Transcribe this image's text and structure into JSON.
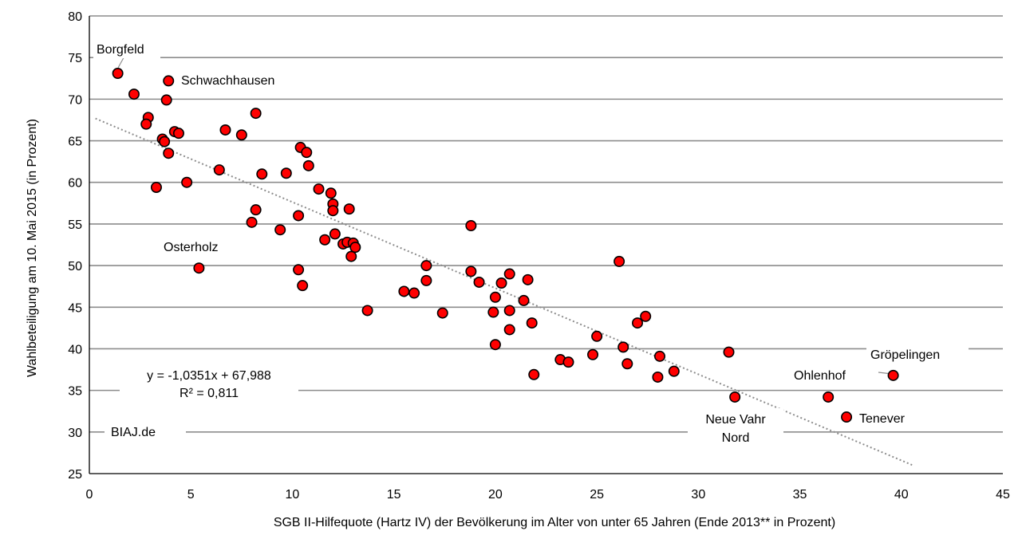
{
  "chart_data": {
    "type": "scatter",
    "title": "",
    "xlabel": "SGB II-Hilfequote (Hartz IV) der Bevölkerung im Alter von unter 65 Jahren (Ende 2013** in Prozent)",
    "ylabel": "Wahlbeteiligung am 10. Mai 2015 (in Prozent)",
    "xlim": [
      0,
      45
    ],
    "ylim": [
      25,
      80
    ],
    "x_ticks": [
      "0",
      "5",
      "10",
      "15",
      "20",
      "25",
      "30",
      "35",
      "40",
      "45"
    ],
    "y_ticks": [
      "25",
      "30",
      "35",
      "40",
      "45",
      "50",
      "55",
      "60",
      "65",
      "70",
      "75",
      "80"
    ],
    "grid": "horizontal",
    "marker_color": "#ff0000",
    "marker_edge": "#000000",
    "trendline": {
      "slope": -1.0351,
      "intercept": 67.988,
      "x_range": [
        0.3,
        40.6
      ],
      "style": "dotted",
      "color": "#8c8c8c"
    },
    "equation_lines": [
      "y = -1,0351x + 67,988",
      "R² = 0,811"
    ],
    "watermark": "BIAJ.de",
    "points": [
      {
        "x": 1.4,
        "y": 73.1,
        "label": "Borgfeld"
      },
      {
        "x": 2.2,
        "y": 70.6
      },
      {
        "x": 3.9,
        "y": 72.2,
        "label": "Schwachhausen"
      },
      {
        "x": 3.8,
        "y": 69.9
      },
      {
        "x": 2.9,
        "y": 67.8
      },
      {
        "x": 2.8,
        "y": 67.0
      },
      {
        "x": 4.2,
        "y": 66.1
      },
      {
        "x": 4.4,
        "y": 65.9
      },
      {
        "x": 3.6,
        "y": 65.2
      },
      {
        "x": 3.7,
        "y": 64.9
      },
      {
        "x": 3.9,
        "y": 63.5
      },
      {
        "x": 3.3,
        "y": 59.4
      },
      {
        "x": 4.8,
        "y": 60.0
      },
      {
        "x": 6.7,
        "y": 66.3
      },
      {
        "x": 7.5,
        "y": 65.7
      },
      {
        "x": 8.2,
        "y": 68.3
      },
      {
        "x": 6.4,
        "y": 61.5
      },
      {
        "x": 8.5,
        "y": 61.0
      },
      {
        "x": 9.7,
        "y": 61.1
      },
      {
        "x": 8.2,
        "y": 56.7
      },
      {
        "x": 8.0,
        "y": 55.2
      },
      {
        "x": 9.4,
        "y": 54.3
      },
      {
        "x": 5.4,
        "y": 49.7,
        "label": "Osterholz"
      },
      {
        "x": 10.4,
        "y": 64.2
      },
      {
        "x": 10.7,
        "y": 63.6
      },
      {
        "x": 10.8,
        "y": 62.0
      },
      {
        "x": 11.3,
        "y": 59.2
      },
      {
        "x": 11.9,
        "y": 58.7
      },
      {
        "x": 12.0,
        "y": 57.4
      },
      {
        "x": 12.0,
        "y": 56.6
      },
      {
        "x": 12.8,
        "y": 56.8
      },
      {
        "x": 10.3,
        "y": 56.0
      },
      {
        "x": 12.1,
        "y": 53.8
      },
      {
        "x": 11.6,
        "y": 53.1
      },
      {
        "x": 12.5,
        "y": 52.6
      },
      {
        "x": 12.7,
        "y": 52.8
      },
      {
        "x": 13.0,
        "y": 52.7
      },
      {
        "x": 13.1,
        "y": 52.2
      },
      {
        "x": 12.9,
        "y": 51.1
      },
      {
        "x": 10.3,
        "y": 49.5
      },
      {
        "x": 10.5,
        "y": 47.6
      },
      {
        "x": 13.7,
        "y": 44.6
      },
      {
        "x": 15.5,
        "y": 46.9
      },
      {
        "x": 16.0,
        "y": 46.7
      },
      {
        "x": 16.6,
        "y": 50.0
      },
      {
        "x": 16.6,
        "y": 48.2
      },
      {
        "x": 17.4,
        "y": 44.3
      },
      {
        "x": 18.8,
        "y": 54.8
      },
      {
        "x": 18.8,
        "y": 49.3
      },
      {
        "x": 19.2,
        "y": 48.0
      },
      {
        "x": 20.0,
        "y": 46.2
      },
      {
        "x": 20.3,
        "y": 47.9
      },
      {
        "x": 19.9,
        "y": 44.4
      },
      {
        "x": 20.7,
        "y": 49.0
      },
      {
        "x": 20.7,
        "y": 44.6
      },
      {
        "x": 21.6,
        "y": 48.3
      },
      {
        "x": 21.4,
        "y": 45.8
      },
      {
        "x": 21.8,
        "y": 43.1
      },
      {
        "x": 20.7,
        "y": 42.3
      },
      {
        "x": 20.0,
        "y": 40.5
      },
      {
        "x": 21.9,
        "y": 36.9
      },
      {
        "x": 23.2,
        "y": 38.7
      },
      {
        "x": 23.6,
        "y": 38.4
      },
      {
        "x": 24.8,
        "y": 39.3
      },
      {
        "x": 25.0,
        "y": 41.5
      },
      {
        "x": 26.1,
        "y": 50.5
      },
      {
        "x": 26.3,
        "y": 40.2
      },
      {
        "x": 26.5,
        "y": 38.2
      },
      {
        "x": 27.0,
        "y": 43.1
      },
      {
        "x": 27.4,
        "y": 43.9
      },
      {
        "x": 28.1,
        "y": 39.1
      },
      {
        "x": 28.0,
        "y": 36.6
      },
      {
        "x": 28.8,
        "y": 37.3
      },
      {
        "x": 31.5,
        "y": 39.6
      },
      {
        "x": 31.8,
        "y": 34.2,
        "label": "Neue Vahr Nord"
      },
      {
        "x": 36.4,
        "y": 34.2,
        "label": "Ohlenhof"
      },
      {
        "x": 37.3,
        "y": 31.8,
        "label": "Tenever"
      },
      {
        "x": 39.6,
        "y": 36.8,
        "label": "Gröpelingen"
      }
    ],
    "point_labels": {
      "borgfeld": "Borgfeld",
      "schwachhausen": "Schwachhausen",
      "osterholz": "Osterholz",
      "neue_vahr_nord_line1": "Neue Vahr",
      "neue_vahr_nord_line2": "Nord",
      "ohlenhof": "Ohlenhof",
      "tenever": "Tenever",
      "groepelingen": "Gröpelingen"
    }
  }
}
